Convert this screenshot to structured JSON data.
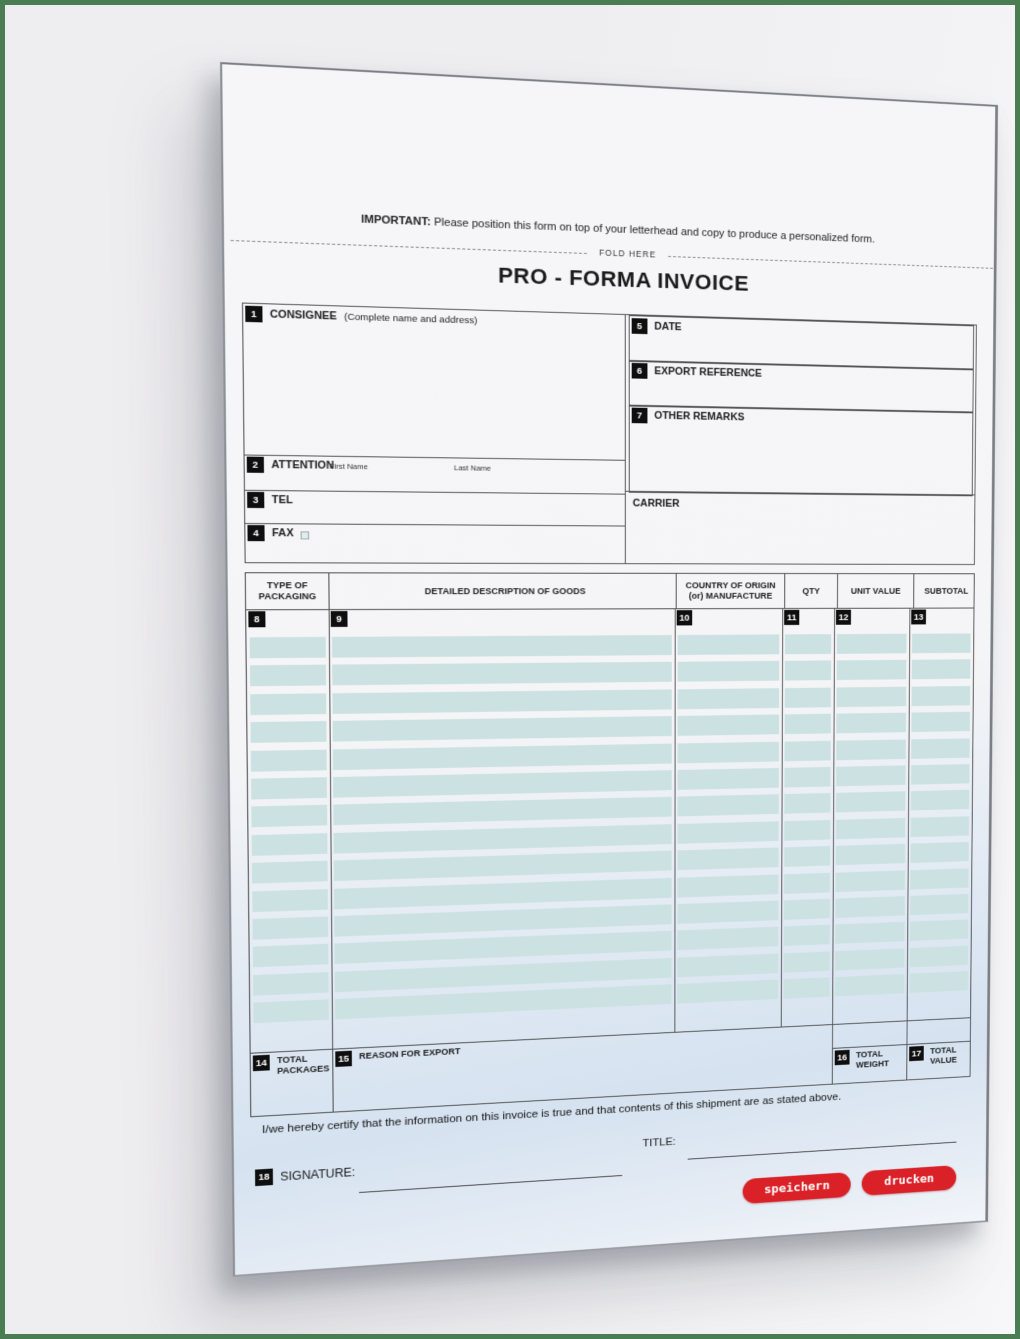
{
  "page": {
    "important_label": "IMPORTANT:",
    "instruction": "Please position this form on top of your letterhead and copy to produce a personalized form.",
    "fold_label": "FOLD HERE",
    "title": "PRO - FORMA INVOICE"
  },
  "fields": {
    "consignee": {
      "num": "1",
      "label": "CONSIGNEE",
      "hint": "(Complete name and address)"
    },
    "attention": {
      "num": "2",
      "label": "ATTENTION",
      "first_name": "First Name",
      "last_name": "Last Name"
    },
    "tel": {
      "num": "3",
      "label": "TEL"
    },
    "fax": {
      "num": "4",
      "label": "FAX"
    },
    "date": {
      "num": "5",
      "label": "DATE"
    },
    "export_reference": {
      "num": "6",
      "label": "EXPORT REFERENCE"
    },
    "other_remarks": {
      "num": "7",
      "label": "OTHER REMARKS"
    },
    "carrier": {
      "label": "CARRIER"
    }
  },
  "table": {
    "blank_rows": 14,
    "columns": [
      {
        "num": "8",
        "label": "TYPE OF\nPACKAGING"
      },
      {
        "num": "9",
        "label": "DETAILED DESCRIPTION OF GOODS"
      },
      {
        "num": "10",
        "label": "COUNTRY OF ORIGIN\n(or) MANUFACTURE"
      },
      {
        "num": "11",
        "label": "QTY"
      },
      {
        "num": "12",
        "label": "UNIT VALUE"
      },
      {
        "num": "13",
        "label": "SUBTOTAL"
      }
    ],
    "total_packages": {
      "num": "14",
      "label": "TOTAL\nPACKAGES"
    },
    "reason_for_export": {
      "num": "15",
      "label": "REASON FOR EXPORT"
    },
    "total_weight": {
      "num": "16",
      "label": "TOTAL\nWEIGHT"
    },
    "total_value": {
      "num": "17",
      "label": "TOTAL\nVALUE"
    }
  },
  "footer": {
    "certification": "I/we hereby certify that the information on this invoice is true and that contents of this shipment are as stated above.",
    "signature": {
      "num": "18",
      "label": "SIGNATURE:"
    },
    "title_label": "TITLE:",
    "buttons": {
      "save": "speichern",
      "print": "drucken"
    }
  },
  "colors": {
    "accent_red": "#da2128",
    "frame_green": "#4a7d52",
    "field_teal": "#cce1e1"
  }
}
